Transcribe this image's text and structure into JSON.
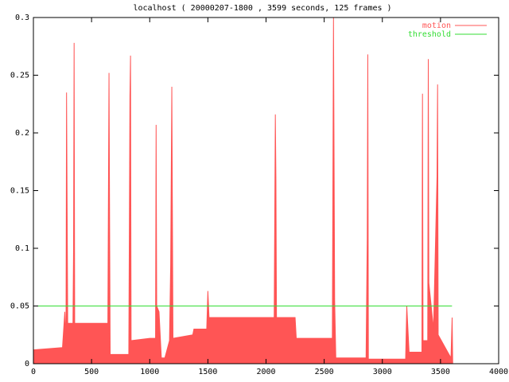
{
  "chart_data": {
    "type": "line",
    "title": "localhost ( 20000207-1800 , 3599 seconds, 125 frames )",
    "xlim": [
      0,
      4000
    ],
    "xticks": [
      0,
      500,
      1000,
      1500,
      2000,
      2500,
      3000,
      3500,
      4000
    ],
    "ylim": [
      0,
      0.3
    ],
    "yticks": [
      0,
      0.05,
      0.1,
      0.15,
      0.2,
      0.25,
      0.3
    ],
    "legend": "top right",
    "series": [
      {
        "name": "motion",
        "color": "#ff5555",
        "fill": true,
        "x": [
          0,
          250,
          270,
          280,
          285,
          295,
          340,
          345,
          350,
          355,
          640,
          650,
          655,
          660,
          820,
          830,
          835,
          840,
          1000,
          1050,
          1055,
          1060,
          1080,
          1100,
          1130,
          1170,
          1180,
          1190,
          1200,
          1370,
          1380,
          1490,
          1500,
          1510,
          2070,
          2080,
          2085,
          2090,
          2250,
          2260,
          2570,
          2580,
          2590,
          2600,
          2860,
          2870,
          2875,
          2880,
          3200,
          3210,
          3230,
          3340,
          3345,
          3350,
          3390,
          3395,
          3400,
          3440,
          3470,
          3475,
          3480,
          3590,
          3600,
          3605
        ],
        "values": [
          0.012,
          0.014,
          0.045,
          0.015,
          0.235,
          0.035,
          0.035,
          0.097,
          0.278,
          0.035,
          0.035,
          0.252,
          0.128,
          0.008,
          0.008,
          0.232,
          0.267,
          0.02,
          0.022,
          0.022,
          0.207,
          0.05,
          0.045,
          0.005,
          0.005,
          0.02,
          0.085,
          0.24,
          0.022,
          0.025,
          0.03,
          0.03,
          0.063,
          0.04,
          0.04,
          0.216,
          0.16,
          0.04,
          0.04,
          0.022,
          0.022,
          0.3,
          0.055,
          0.005,
          0.005,
          0.108,
          0.268,
          0.004,
          0.004,
          0.05,
          0.01,
          0.01,
          0.234,
          0.02,
          0.02,
          0.264,
          0.07,
          0.03,
          0.162,
          0.242,
          0.025,
          0.005,
          0.04,
          0
        ]
      },
      {
        "name": "threshold",
        "color": "#33dd33",
        "fill": false,
        "x": [
          0,
          3599
        ],
        "values": [
          0.05,
          0.05
        ]
      }
    ]
  }
}
